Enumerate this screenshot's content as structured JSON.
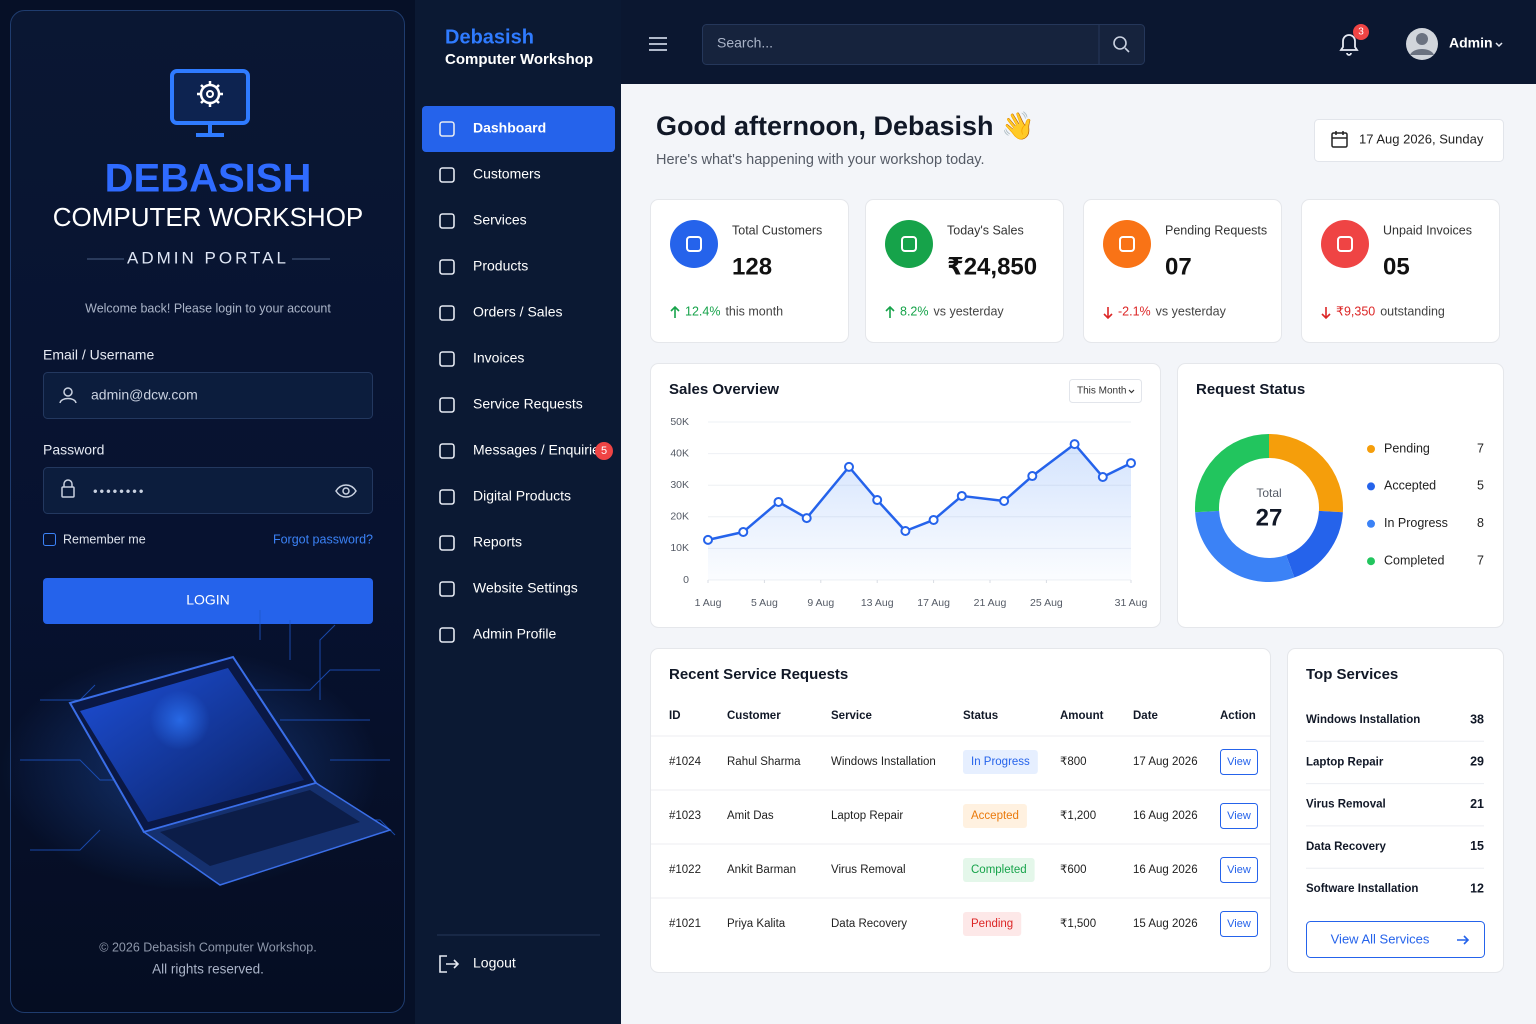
{
  "login": {
    "brand": "DEBASISH",
    "subtitle": "COMPUTER WORKSHOP",
    "portal": "ADMIN PORTAL",
    "welcome": "Welcome back! Please login to your account",
    "email_label": "Email / Username",
    "email_value": "admin@dcw.com",
    "password_label": "Password",
    "password_value": "••••••••",
    "remember": "Remember me",
    "forgot": "Forgot password?",
    "button": "LOGIN",
    "footer": [
      "© 2026 Debasish Computer Workshop.",
      "All rights reserved."
    ]
  },
  "sidebar": {
    "brand": "Debasish",
    "subtitle": "Computer Workshop",
    "items": [
      "Dashboard",
      "Customers",
      "Services",
      "Products",
      "Orders / Sales",
      "Invoices",
      "Service Requests",
      "Messages / Enquiries",
      "Digital Products",
      "Reports",
      "Website Settings",
      "Admin Profile"
    ],
    "badge": "5",
    "logout": "Logout"
  },
  "topbar": {
    "search": "Search...",
    "notifications": "3",
    "user": "Admin"
  },
  "header": {
    "greeting": "Good afternoon, Debasish 👋",
    "subtitle": "Here's what's happening with your workshop today.",
    "date": "17 Aug 2026, Sunday"
  },
  "stats": [
    {
      "label": "Total Customers",
      "value": "128",
      "change": "12.4%",
      "note": "this month",
      "trend": "up",
      "color": "#2563eb"
    },
    {
      "label": "Today's Sales",
      "value": "₹24,850",
      "change": "8.2%",
      "note": "vs yesterday",
      "trend": "up",
      "color": "#16a34a"
    },
    {
      "label": "Pending Requests",
      "value": "07",
      "change": "-2.1%",
      "note": "vs yesterday",
      "trend": "down",
      "color": "#f97316"
    },
    {
      "label": "Unpaid Invoices",
      "value": "05",
      "change": "₹9,350",
      "note": "outstanding",
      "trend": "down",
      "color": "#ef4444"
    }
  ],
  "chart_data": [
    {
      "type": "line",
      "title": "Sales Overview",
      "filter": "This Month",
      "x": [
        1,
        3.5,
        6,
        8,
        11,
        13,
        15,
        17,
        19,
        22,
        24,
        27,
        29,
        31
      ],
      "values": [
        12700,
        15200,
        24700,
        19600,
        35800,
        25300,
        15500,
        19000,
        26600,
        25000,
        32900,
        43000,
        32600,
        37000
      ],
      "color": "#2563eb",
      "xlim": [
        1,
        31
      ],
      "xticks": [
        {
          "value": 1,
          "label": "1 Aug"
        },
        {
          "value": 5,
          "label": "5 Aug"
        },
        {
          "value": 9,
          "label": "9 Aug"
        },
        {
          "value": 13,
          "label": "13 Aug"
        },
        {
          "value": 17,
          "label": "17 Aug"
        },
        {
          "value": 21,
          "label": "21 Aug"
        },
        {
          "value": 25,
          "label": "25 Aug"
        },
        {
          "value": 31,
          "label": "31 Aug"
        }
      ],
      "ylim": [
        0,
        50000
      ],
      "yticks": [
        0,
        {
          "value": 10000,
          "label": "10K"
        },
        {
          "value": 20000,
          "label": "20K"
        },
        {
          "value": 30000,
          "label": "30K"
        },
        {
          "value": 40000,
          "label": "40K"
        },
        {
          "value": 50000,
          "label": "50K"
        }
      ],
      "grid": true
    },
    {
      "type": "pie",
      "donut": true,
      "title": "Request Status",
      "center_label": "Total",
      "total": 27,
      "categories": [
        "Pending",
        "Accepted",
        "In Progress",
        "Completed"
      ],
      "values": [
        7,
        5,
        8,
        7
      ],
      "colors": [
        "#f59e0b",
        "#2563eb",
        "#3b82f6",
        "#22c55e"
      ]
    }
  ],
  "recent_requests": {
    "title": "Recent Service Requests",
    "columns": [
      "ID",
      "Customer",
      "Service",
      "Status",
      "Amount",
      "Date",
      "Action"
    ],
    "rows": [
      [
        "#1024",
        "Rahul Sharma",
        "Windows Installation",
        "In Progress",
        "₹800",
        "17 Aug 2026",
        "View"
      ],
      [
        "#1023",
        "Amit Das",
        "Laptop Repair",
        "Accepted",
        "₹1,200",
        "16 Aug 2026",
        "View"
      ],
      [
        "#1022",
        "Ankit Barman",
        "Virus Removal",
        "Completed",
        "₹600",
        "16 Aug 2026",
        "View"
      ],
      [
        "#1021",
        "Priya Kalita",
        "Data Recovery",
        "Pending",
        "₹1,500",
        "15 Aug 2026",
        "View"
      ]
    ],
    "status_tones": [
      "blue",
      "orange",
      "green",
      "red"
    ]
  },
  "top_services": {
    "title": "Top Services",
    "items": [
      {
        "name": "Windows Installation",
        "count": 38
      },
      {
        "name": "Laptop Repair",
        "count": 29
      },
      {
        "name": "Virus Removal",
        "count": 21
      },
      {
        "name": "Data Recovery",
        "count": 15
      },
      {
        "name": "Software Installation",
        "count": 12
      }
    ],
    "button": "View All Services"
  }
}
